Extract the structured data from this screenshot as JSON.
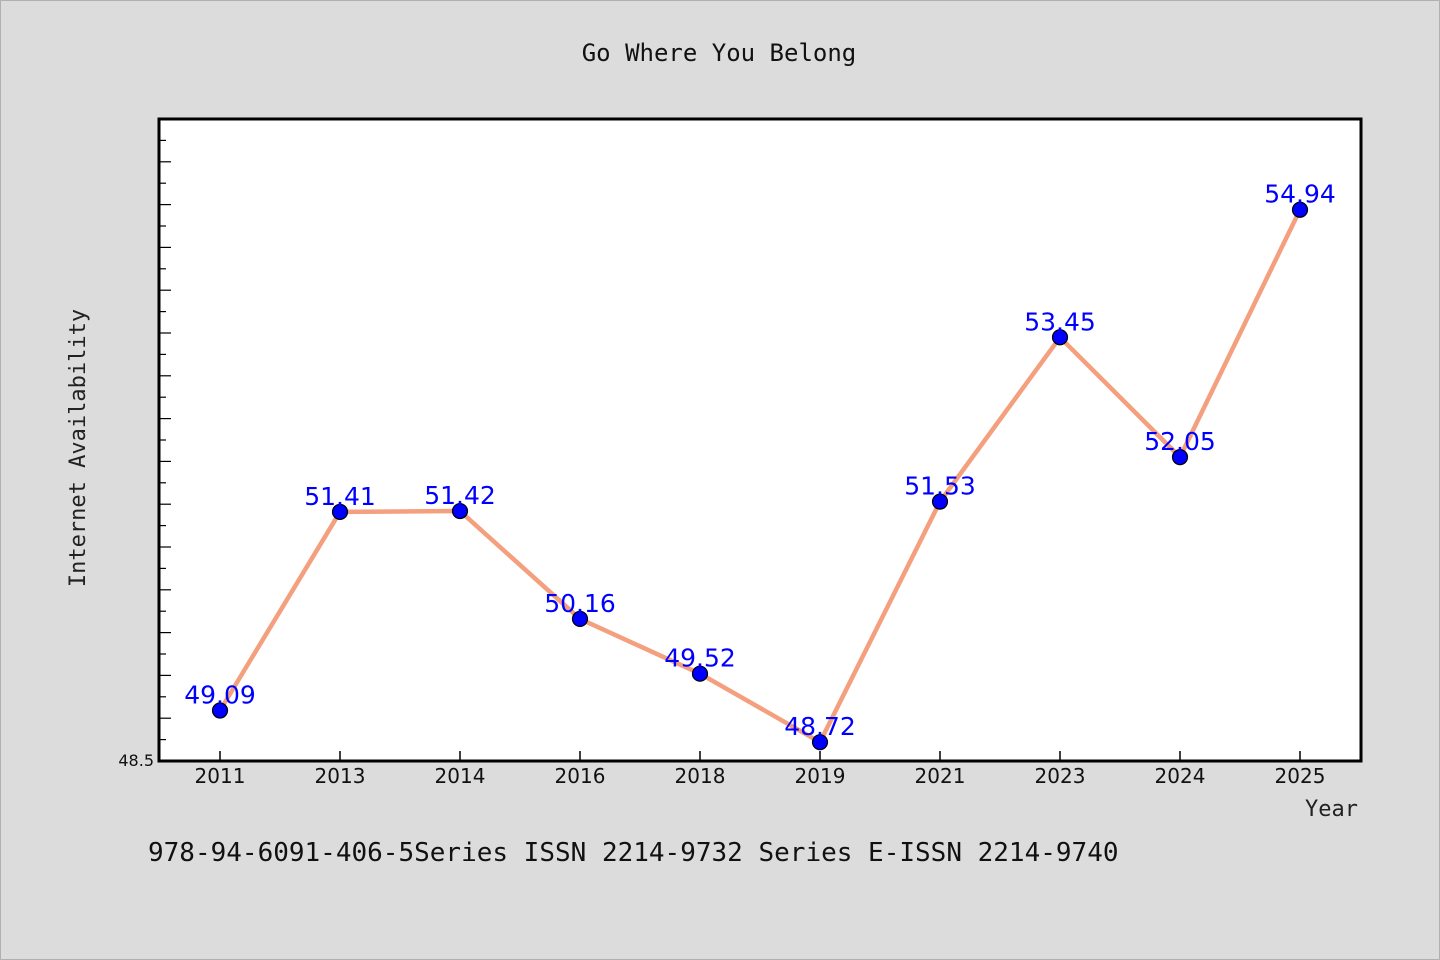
{
  "chart_data": {
    "type": "line",
    "title": "Go Where You Belong",
    "xlabel": "Year",
    "ylabel": "Internet Availability",
    "categories": [
      "2011",
      "2013",
      "2014",
      "2016",
      "2018",
      "2019",
      "2021",
      "2023",
      "2024",
      "2025"
    ],
    "series": [
      {
        "values": [
          49.09,
          51.41,
          51.42,
          50.16,
          49.52,
          48.72,
          51.53,
          53.45,
          52.05,
          54.94
        ],
        "data_labels": [
          "49.09",
          "51.41",
          "51.42",
          "50.16",
          "49.52",
          "48.72",
          "51.53",
          "53.45",
          "52.05",
          "54.94"
        ]
      }
    ],
    "ylim": [
      48.5,
      56.0
    ],
    "ytick_labels": [
      "48.5"
    ],
    "grid": false,
    "colors": {
      "line": "#f4a07e",
      "marker": "#0000ff",
      "data_label": "#0000ff",
      "plot_background": "#ffffff",
      "page_background": "#dcdcdc"
    }
  },
  "footer": {
    "text": "978-94-6091-406-5Series ISSN 2214-9732 Series E-ISSN 2214-9740"
  }
}
